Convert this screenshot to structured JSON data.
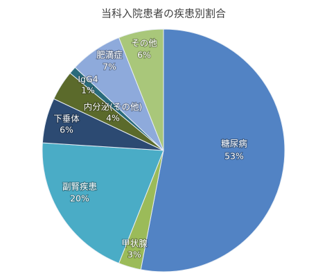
{
  "chart_data": {
    "type": "pie",
    "title": "当科入院患者の疾患別割合",
    "categories": [
      "糖尿病",
      "甲状腺",
      "副腎疾患",
      "下垂体",
      "内分泌(その他)",
      "IgG4",
      "肥満症",
      "その他"
    ],
    "values": [
      53,
      3,
      20,
      6,
      4,
      1,
      7,
      6
    ],
    "value_labels": [
      "53%",
      "3%",
      "20%",
      "6%",
      "4%",
      "1%",
      "7%",
      "6%"
    ],
    "colors": [
      "#5283c4",
      "#9bbb59",
      "#4aacc6",
      "#2c4a72",
      "#5b6a2b",
      "#2a6b7b",
      "#8eaadb",
      "#a9c77a"
    ]
  }
}
